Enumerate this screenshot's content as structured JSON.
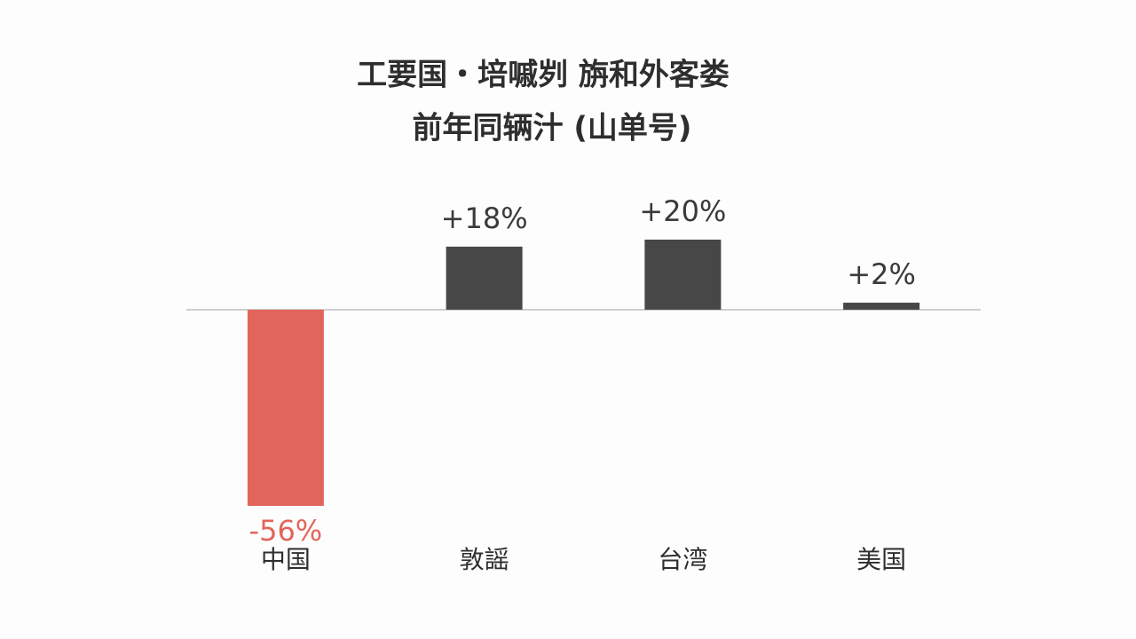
{
  "chart_data": {
    "type": "bar",
    "title": "工要国・培嘁刿 旃和外客娄",
    "subtitle": "前年同辆汁 (山单号)",
    "categories": [
      "中国",
      "敦謡",
      "台湾",
      "美国"
    ],
    "values": [
      -56,
      18,
      20,
      2
    ],
    "value_labels": [
      "-56%",
      "+18%",
      "+20%",
      "+2%"
    ],
    "colors": [
      "#e2655b",
      "#474747",
      "#474747",
      "#474747"
    ],
    "label_colors": [
      "#e2655b",
      "#3a3a3a",
      "#3a3a3a",
      "#3a3a3a"
    ]
  }
}
